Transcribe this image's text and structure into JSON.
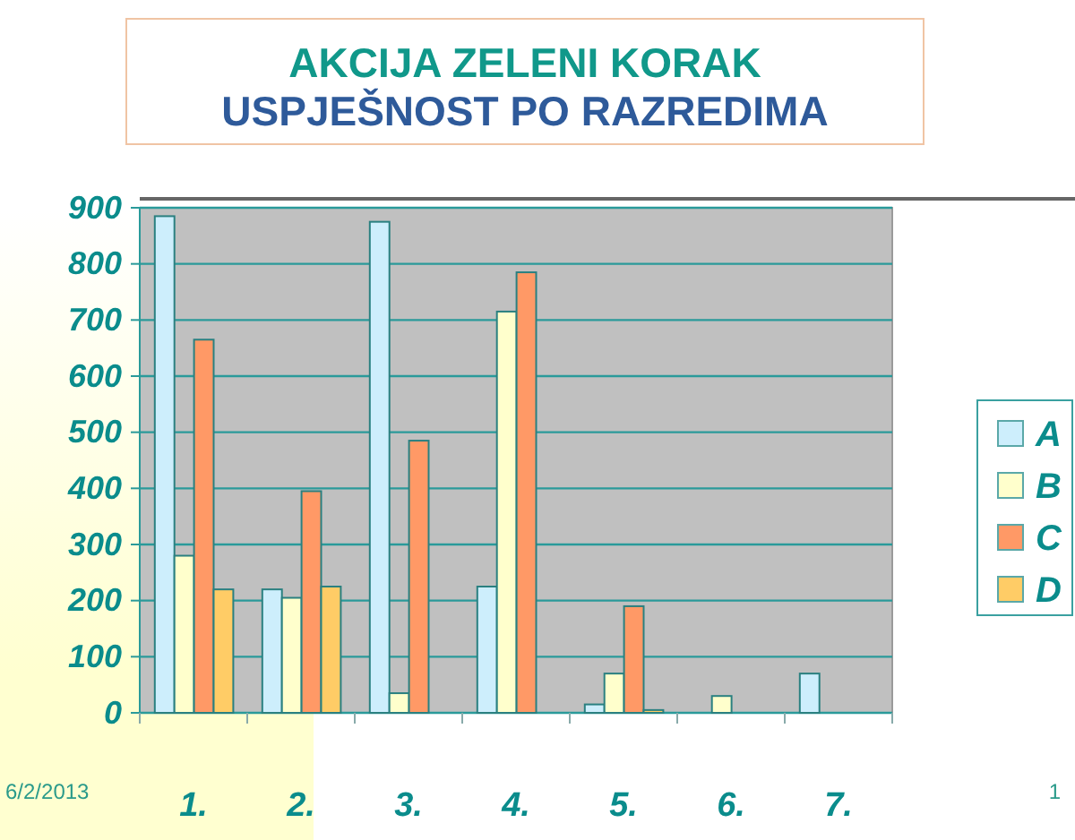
{
  "chart_data": {
    "type": "bar",
    "title": "AKCIJA ZELENI KORAK",
    "subtitle": "USPJEŠNOST PO RAZREDIMA",
    "categories": [
      "1.",
      "2.",
      "3.",
      "4.",
      "5.",
      "6.",
      "7."
    ],
    "series": [
      {
        "name": "A",
        "color": "#cdeefc",
        "values": [
          885,
          220,
          875,
          225,
          15,
          null,
          70
        ]
      },
      {
        "name": "B",
        "color": "#ffffcc",
        "values": [
          280,
          205,
          35,
          715,
          70,
          30,
          null
        ]
      },
      {
        "name": "C",
        "color": "#ff9966",
        "values": [
          665,
          395,
          485,
          785,
          190,
          null,
          null
        ]
      },
      {
        "name": "D",
        "color": "#ffcc66",
        "values": [
          220,
          225,
          null,
          null,
          5,
          null,
          null
        ]
      }
    ],
    "ylim": [
      0,
      900
    ],
    "yticks": [
      0,
      100,
      200,
      300,
      400,
      500,
      600,
      700,
      800,
      900
    ],
    "grid": "y",
    "legend": "right",
    "annotations": [
      "6/2/2013",
      "1"
    ]
  }
}
